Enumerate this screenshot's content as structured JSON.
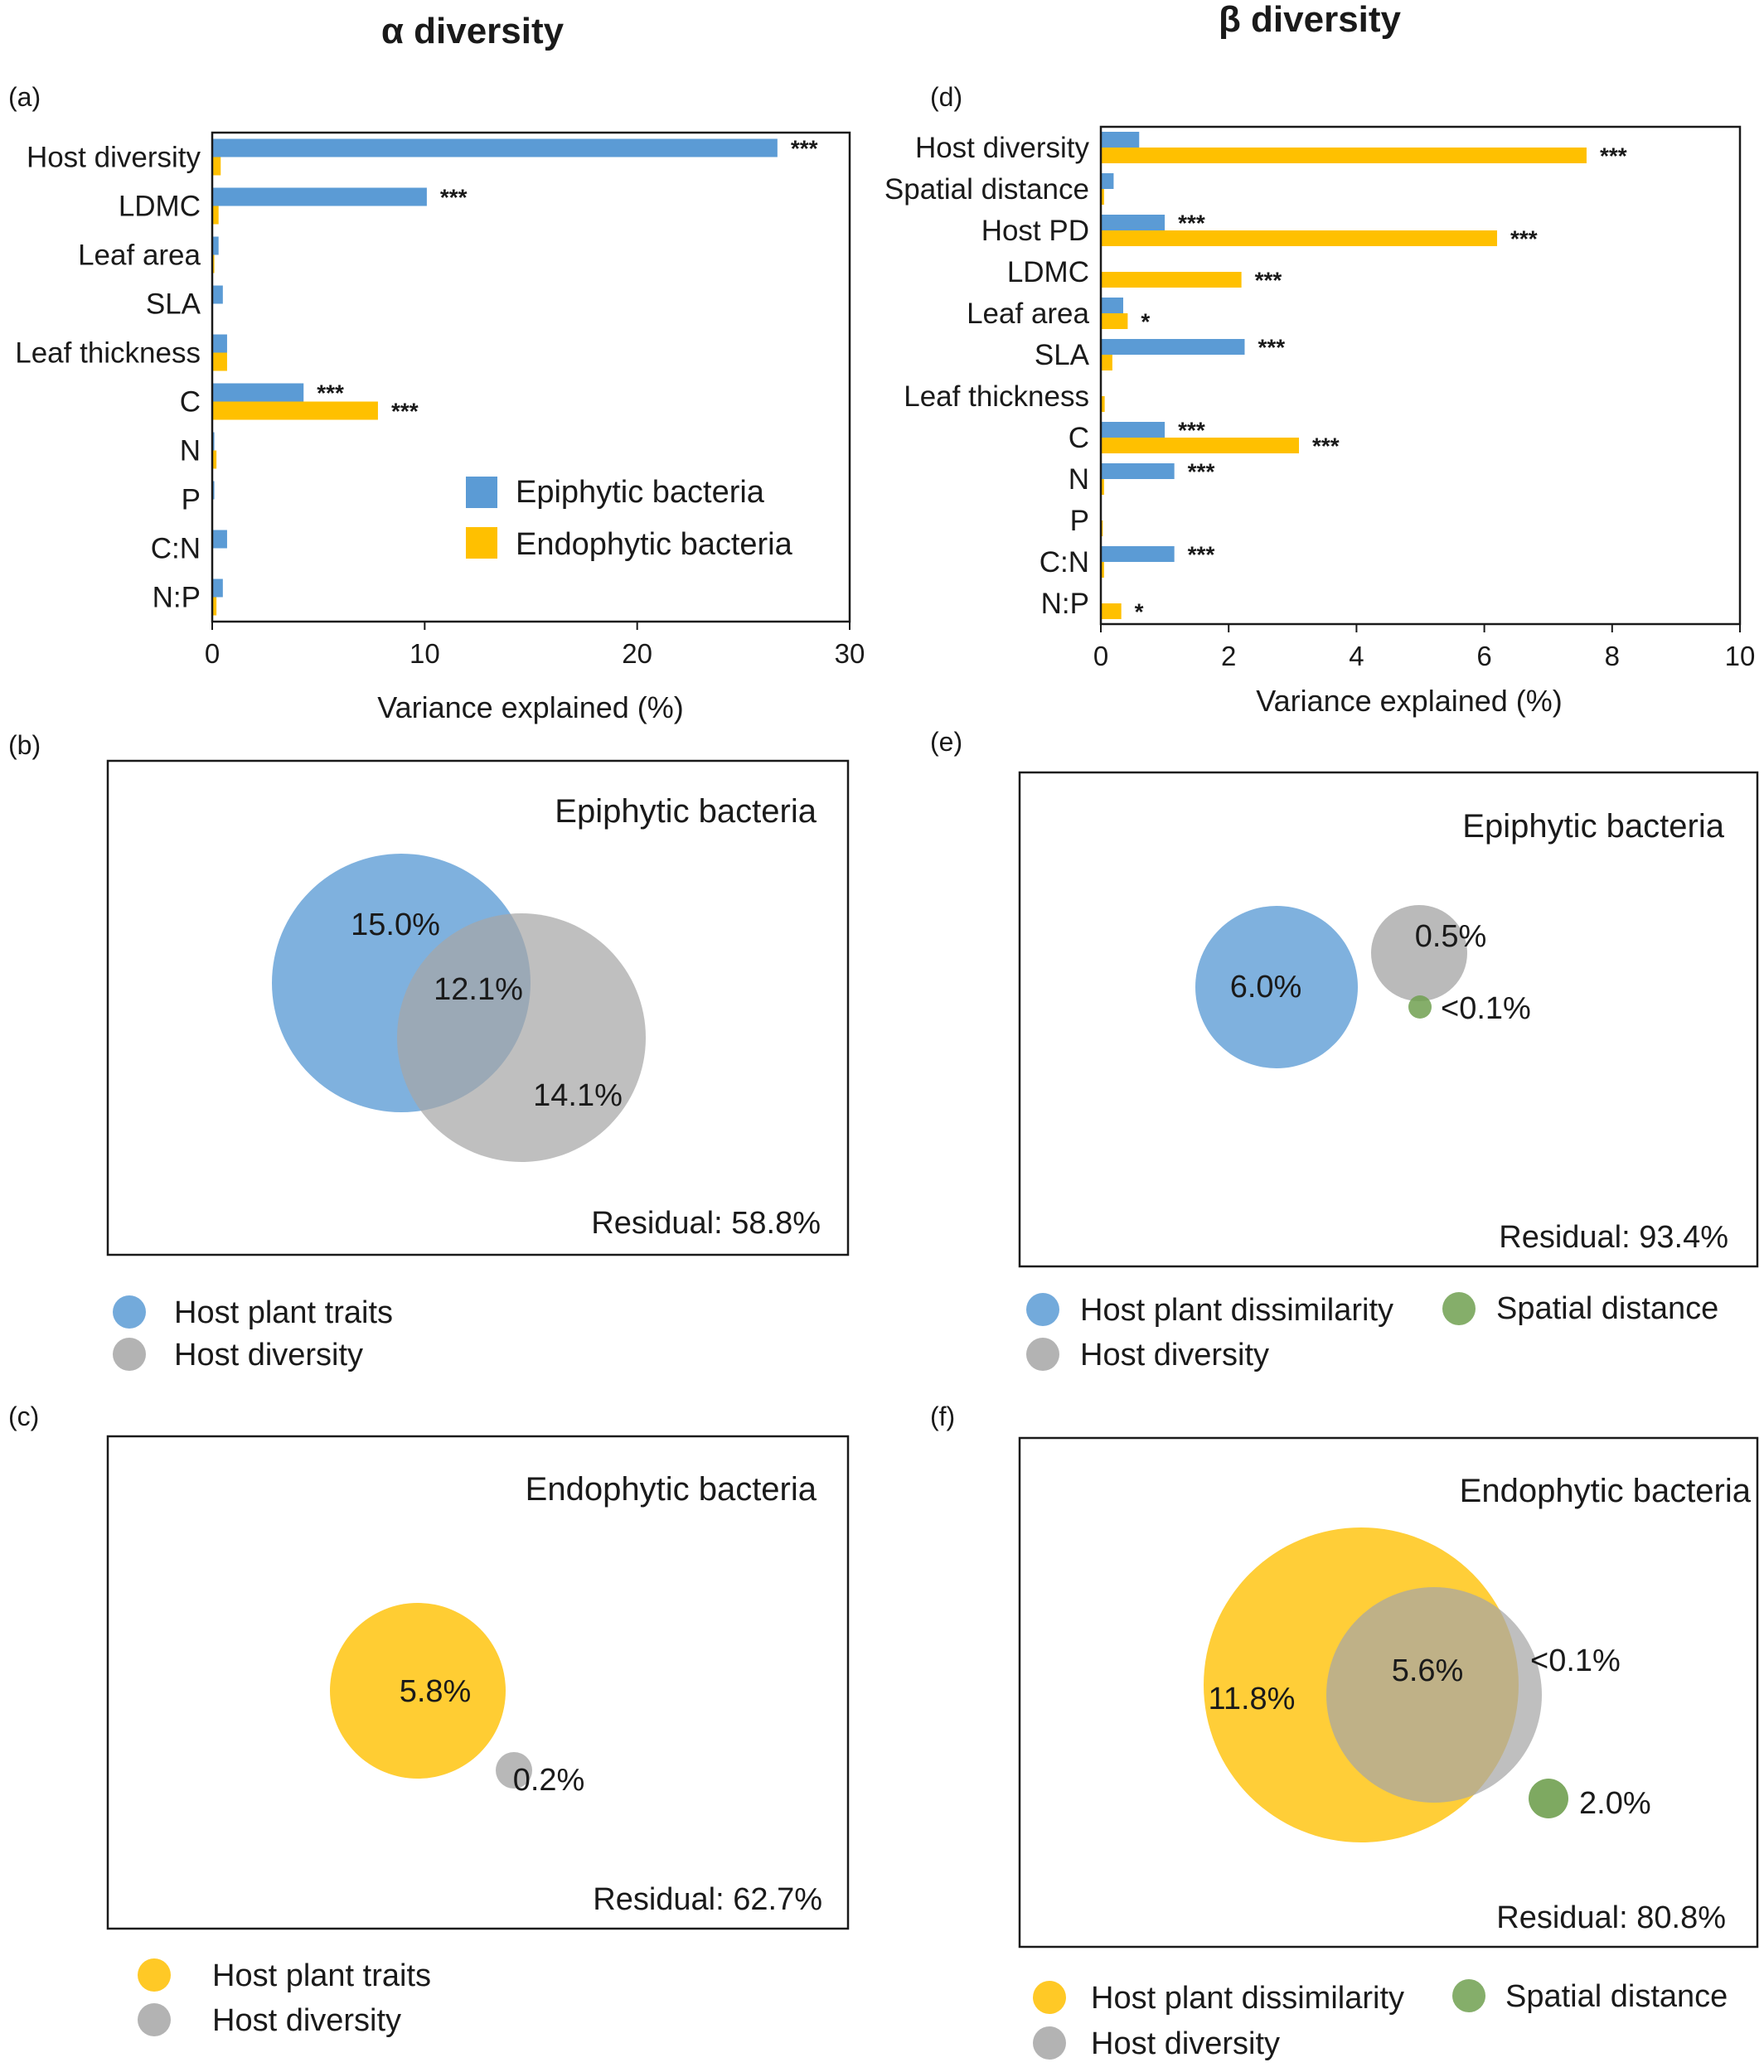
{
  "headers": {
    "alpha": "α diversity",
    "beta": "β diversity"
  },
  "colors": {
    "epiphytic": "#5b9bd5",
    "endophytic": "#ffc000",
    "host_traits_yellow": "#ffcc33",
    "host_diversity": "#b3b3b3",
    "spatial": "#70a050"
  },
  "chart_data": [
    {
      "panel": "(a)",
      "type": "bar",
      "orientation": "horizontal",
      "categories": [
        "Host diversity",
        "LDMC",
        "Leaf area",
        "SLA",
        "Leaf thickness",
        "C",
        "N",
        "P",
        "C:N",
        "N:P"
      ],
      "series": [
        {
          "name": "Epiphytic bacteria",
          "values": [
            26.6,
            10.1,
            0.3,
            0.5,
            0.7,
            4.3,
            0.1,
            0.1,
            0.7,
            0.5
          ],
          "significance": [
            "***",
            "***",
            "",
            "",
            "",
            "***",
            "",
            "",
            "",
            ""
          ]
        },
        {
          "name": "Endophytic bacteria",
          "values": [
            0.4,
            0.3,
            0.1,
            0.0,
            0.7,
            7.8,
            0.2,
            0.0,
            0.0,
            0.2
          ],
          "significance": [
            "",
            "",
            "",
            "",
            "",
            "***",
            "",
            "",
            "",
            ""
          ]
        }
      ],
      "xlabel": "Variance explained (%)",
      "xlim": [
        0,
        30
      ],
      "xticks": [
        0,
        10,
        20,
        30
      ],
      "legend_position": "bottom-right",
      "grid": false
    },
    {
      "panel": "(d)",
      "type": "bar",
      "orientation": "horizontal",
      "categories": [
        "Host diversity",
        "Spatial distance",
        "Host PD",
        "LDMC",
        "Leaf area",
        "SLA",
        "Leaf thickness",
        "C",
        "N",
        "P",
        "C:N",
        "N:P"
      ],
      "series": [
        {
          "name": "Epiphytic bacteria",
          "values": [
            0.6,
            0.2,
            1.0,
            0.0,
            0.35,
            2.25,
            0.0,
            1.0,
            1.15,
            0.0,
            1.15,
            0.0
          ],
          "significance": [
            "",
            "",
            "***",
            "",
            "",
            "***",
            "",
            "***",
            "***",
            "",
            "***",
            ""
          ]
        },
        {
          "name": "Endophytic bacteria",
          "values": [
            7.6,
            0.05,
            6.2,
            2.2,
            0.42,
            0.18,
            0.06,
            3.1,
            0.05,
            0.03,
            0.05,
            0.32
          ],
          "significance": [
            "***",
            "",
            "***",
            "***",
            "*",
            "",
            "",
            "***",
            "",
            "",
            "",
            "*"
          ]
        }
      ],
      "xlabel": "Variance explained (%)",
      "xlim": [
        0,
        10
      ],
      "xticks": [
        0,
        2,
        4,
        6,
        8,
        10
      ],
      "grid": false
    }
  ],
  "venn": [
    {
      "panel": "(b)",
      "title": "Epiphytic bacteria",
      "labels": [
        "15.0%",
        "12.1%",
        "14.1%"
      ],
      "residual": "Residual: 58.8%",
      "legend": [
        "Host plant traits",
        "Host diversity"
      ]
    },
    {
      "panel": "(c)",
      "title": "Endophytic bacteria",
      "labels": [
        "5.8%",
        "0.2%"
      ],
      "residual": "Residual: 62.7%",
      "legend": [
        "Host plant traits",
        "Host diversity"
      ]
    },
    {
      "panel": "(e)",
      "title": "Epiphytic bacteria",
      "labels": [
        "6.0%",
        "0.5%",
        "<0.1%"
      ],
      "residual": "Residual: 93.4%",
      "legend": [
        "Host plant dissimilarity",
        "Spatial distance",
        "Host diversity"
      ]
    },
    {
      "panel": "(f)",
      "title": "Endophytic bacteria",
      "labels": [
        "11.8%",
        "5.6%",
        "<0.1%",
        "2.0%"
      ],
      "residual": "Residual: 80.8%",
      "legend": [
        "Host plant dissimilarity",
        "Spatial distance",
        "Host diversity"
      ]
    }
  ]
}
